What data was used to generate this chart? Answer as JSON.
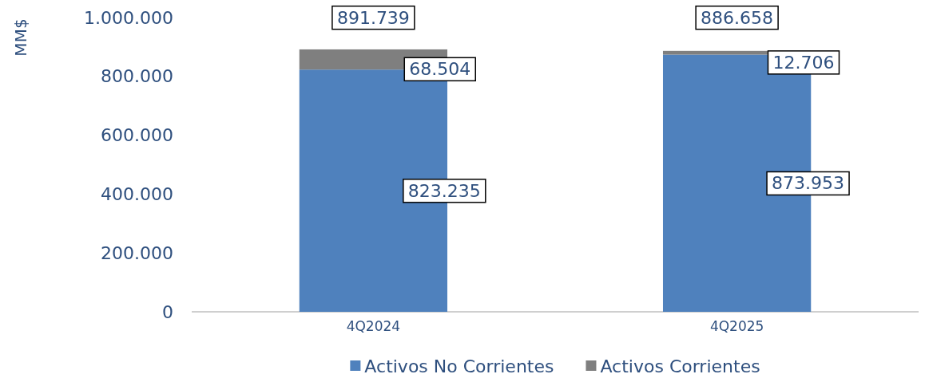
{
  "chart_data": {
    "type": "bar",
    "stacked": true,
    "ylabel": "MM$",
    "categories": [
      "4Q2024",
      "4Q2025"
    ],
    "series": [
      {
        "name": "Activos No Corrientes",
        "color": "#4f81bd",
        "values": [
          823235,
          873953
        ],
        "value_labels": [
          "823.235",
          "873.953"
        ]
      },
      {
        "name": "Activos Corrientes",
        "color": "#7f7f7f",
        "values": [
          68504,
          12706
        ],
        "value_labels": [
          "68.504",
          "12.706"
        ]
      }
    ],
    "totals": [
      "891.739",
      "886.658"
    ],
    "ylim": [
      0,
      1000000
    ],
    "yticks": [
      {
        "value": 0,
        "label": "0"
      },
      {
        "value": 200000,
        "label": "200.000"
      },
      {
        "value": 400000,
        "label": "400.000"
      },
      {
        "value": 600000,
        "label": "600.000"
      },
      {
        "value": 800000,
        "label": "800.000"
      },
      {
        "value": 1000000,
        "label": "1.000.000"
      }
    ],
    "grid": false,
    "legend": "bottom"
  }
}
